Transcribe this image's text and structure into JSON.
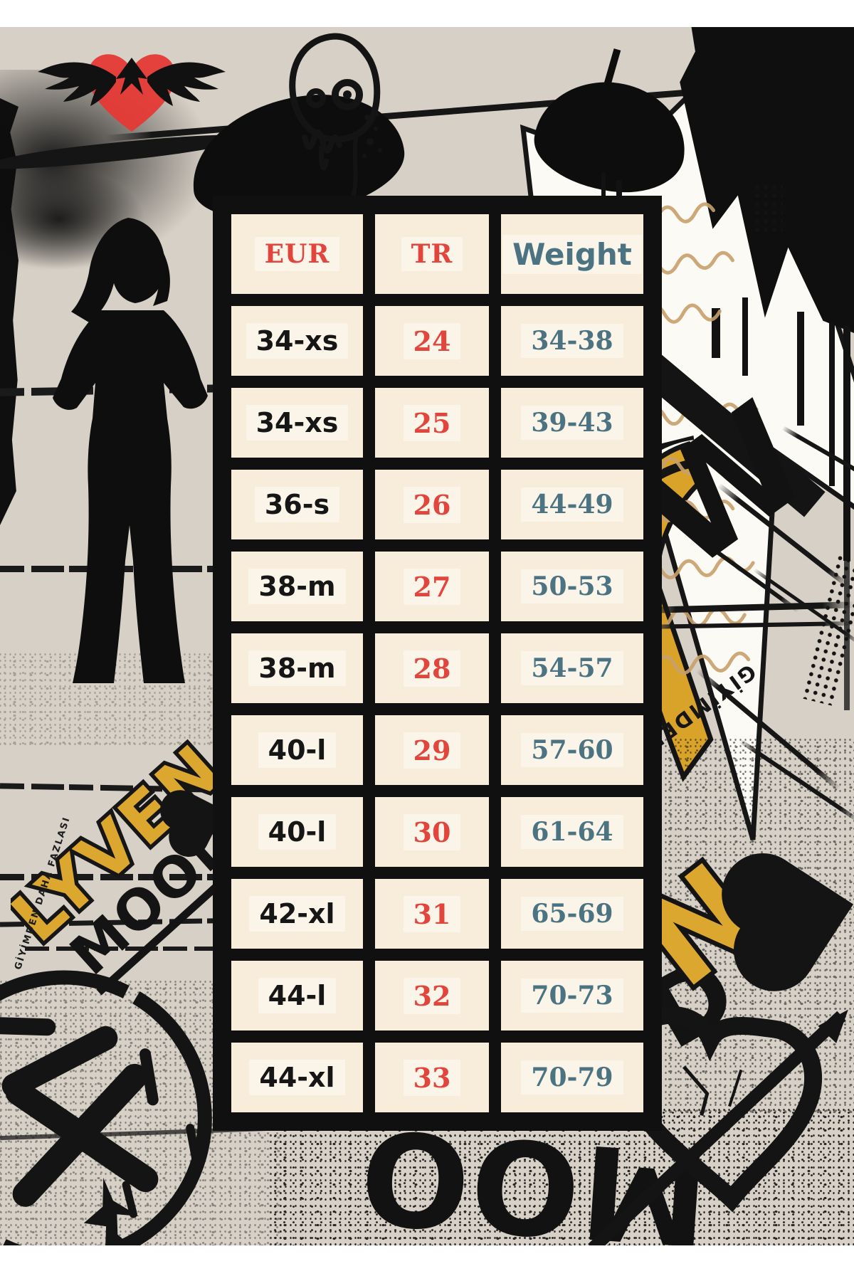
{
  "colors": {
    "background_beige": "#d7d0c6",
    "cell_cream": "#f8edda",
    "accent_red": "#e2453c",
    "accent_teal": "#4b7382",
    "accent_gold": "#dca72e",
    "ink_black": "#121212",
    "script_tan": "#c8a06c",
    "heart_red": "#e53935"
  },
  "chart_data": {
    "type": "table",
    "columns": [
      {
        "key": "eur",
        "label": "EUR",
        "color": "#e2453c"
      },
      {
        "key": "tr",
        "label": "TR",
        "color": "#e2453c"
      },
      {
        "key": "weight",
        "label": "Weight",
        "color": "#4b7382"
      }
    ],
    "rows": [
      [
        "34-xs",
        "24",
        "34-38"
      ],
      [
        "34-xs",
        "25",
        "39-43"
      ],
      [
        "36-s",
        "26",
        "44-49"
      ],
      [
        "38-m",
        "27",
        "50-53"
      ],
      [
        "38-m",
        "28",
        "54-57"
      ],
      [
        "40-l",
        "29",
        "57-60"
      ],
      [
        "40-l",
        "30",
        "61-64"
      ],
      [
        "42-xl",
        "31",
        "65-69"
      ],
      [
        "44-l",
        "32",
        "70-73"
      ],
      [
        "44-xl",
        "33",
        "70-79"
      ]
    ]
  },
  "graffiti": {
    "brand_word_1": "LYVEN",
    "brand_word_2": "MOOD",
    "tagline_vertical": "GİYİMDEN DAHA FAZLASI",
    "side_word": "GİYİMDEN",
    "letter_w": "W",
    "letter_n": "N",
    "bottom_letters": "MOO",
    "corner_letters": "OD"
  }
}
